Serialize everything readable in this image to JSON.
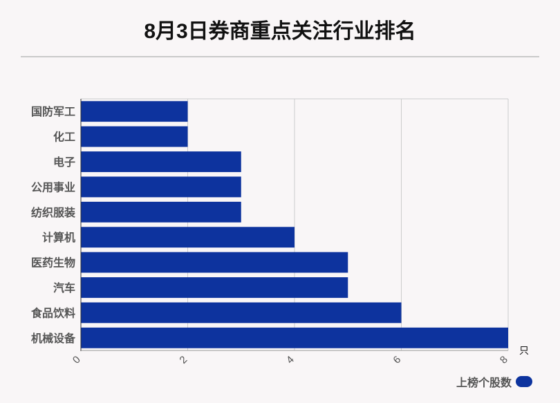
{
  "chart_data": {
    "type": "bar",
    "orientation": "horizontal",
    "title": "8月3日券商重点关注行业排名",
    "categories": [
      "国防军工",
      "化工",
      "电子",
      "公用事业",
      "纺织服装",
      "计算机",
      "医药生物",
      "汽车",
      "食品饮料",
      "机械设备"
    ],
    "series": [
      {
        "name": "上榜个股数",
        "values": [
          2,
          2,
          3,
          3,
          3,
          4,
          5,
          5,
          6,
          8
        ],
        "color": "#0d339e"
      }
    ],
    "xlim": [
      0,
      8
    ],
    "xticks": [
      "0",
      "2",
      "4",
      "6",
      "8"
    ],
    "xunit": "只",
    "grid": true,
    "legend_position": "bottom-right"
  }
}
